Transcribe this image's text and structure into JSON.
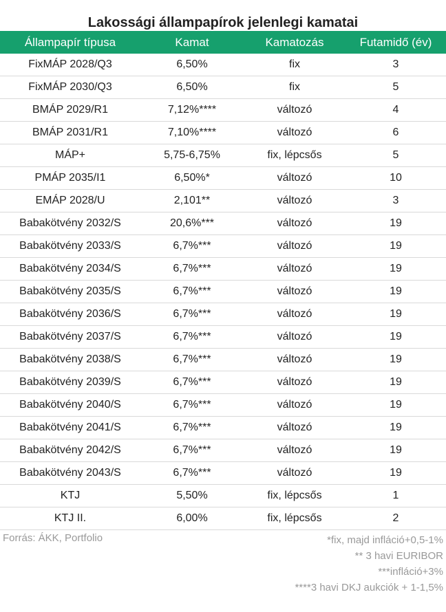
{
  "title": "Lakossági állampapírok jelenlegi kamatai",
  "columns": [
    "Állampapír típusa",
    "Kamat",
    "Kamatozás",
    "Futamidő (év)"
  ],
  "rows": [
    [
      "FixMÁP 2028/Q3",
      "6,50%",
      "fix",
      "3"
    ],
    [
      "FixMÁP 2030/Q3",
      "6,50%",
      "fix",
      "5"
    ],
    [
      "BMÁP 2029/R1",
      "7,12%****",
      "változó",
      "4"
    ],
    [
      "BMÁP 2031/R1",
      "7,10%****",
      "változó",
      "6"
    ],
    [
      "MÁP+",
      "5,75-6,75%",
      "fix, lépcsős",
      "5"
    ],
    [
      "PMÁP 2035/I1",
      "6,50%*",
      "változó",
      "10"
    ],
    [
      "EMÁP 2028/U",
      "2,101**",
      "változó",
      "3"
    ],
    [
      "Babakötvény 2032/S",
      "20,6%***",
      "változó",
      "19"
    ],
    [
      "Babakötvény 2033/S",
      "6,7%***",
      "változó",
      "19"
    ],
    [
      "Babakötvény 2034/S",
      "6,7%***",
      "változó",
      "19"
    ],
    [
      "Babakötvény 2035/S",
      "6,7%***",
      "változó",
      "19"
    ],
    [
      "Babakötvény 2036/S",
      "6,7%***",
      "változó",
      "19"
    ],
    [
      "Babakötvény 2037/S",
      "6,7%***",
      "változó",
      "19"
    ],
    [
      "Babakötvény 2038/S",
      "6,7%***",
      "változó",
      "19"
    ],
    [
      "Babakötvény 2039/S",
      "6,7%***",
      "változó",
      "19"
    ],
    [
      "Babakötvény 2040/S",
      "6,7%***",
      "változó",
      "19"
    ],
    [
      "Babakötvény 2041/S",
      "6,7%***",
      "változó",
      "19"
    ],
    [
      "Babakötvény 2042/S",
      "6,7%***",
      "változó",
      "19"
    ],
    [
      "Babakötvény 2043/S",
      "6,7%***",
      "változó",
      "19"
    ],
    [
      "KTJ",
      "5,50%",
      "fix, lépcsős",
      "1"
    ],
    [
      "KTJ II.",
      "6,00%",
      "fix, lépcsős",
      "2"
    ]
  ],
  "source": "Forrás: ÁKK, Portfolio",
  "notes": [
    "*fix, majd infláció+0,5-1%",
    "** 3 havi EURIBOR",
    "***infláció+3%",
    "****3 havi DKJ aukciók + 1-1,5%"
  ],
  "colors": {
    "header_bg": "#16a06d",
    "header_text": "#ffffff",
    "footer_text": "#999999"
  }
}
